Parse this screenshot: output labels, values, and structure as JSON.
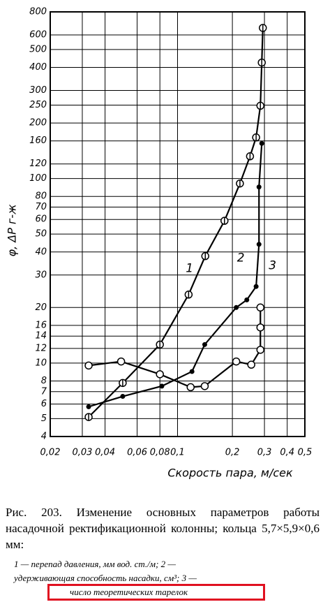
{
  "chart_data": {
    "type": "line",
    "ylabel": "φ, ΔP г-ж",
    "xlabel": "Скорость пара, м/сек",
    "xlog": true,
    "ylog": true,
    "grid": true,
    "xlim": [
      0.02,
      0.5
    ],
    "ylim": [
      4,
      800
    ],
    "xticks": [
      {
        "value": 0.02,
        "label": "0,02"
      },
      {
        "value": 0.03,
        "label": "0,03"
      },
      {
        "value": 0.04,
        "label": "0,04"
      },
      {
        "value": 0.06,
        "label": "0,06"
      },
      {
        "value": 0.08,
        "label": "0,08"
      },
      {
        "value": 0.1,
        "label": "0,1"
      },
      {
        "value": 0.2,
        "label": "0,2"
      },
      {
        "value": 0.3,
        "label": "0,3"
      },
      {
        "value": 0.4,
        "label": "0,4"
      },
      {
        "value": 0.5,
        "label": "0,5"
      }
    ],
    "yticks": [
      4,
      5,
      6,
      7,
      8,
      10,
      12,
      14,
      16,
      20,
      30,
      40,
      50,
      60,
      70,
      80,
      100,
      120,
      160,
      200,
      250,
      300,
      400,
      500,
      600,
      800
    ],
    "series": [
      {
        "label": "1",
        "color": "#000000",
        "marker": "circle-bar",
        "x": [
          0.0325,
          0.05,
          0.08,
          0.115,
          0.142,
          0.181,
          0.22,
          0.25,
          0.27,
          0.285,
          0.29,
          0.294
        ],
        "values": [
          5.1,
          7.8,
          12.6,
          23.5,
          38,
          59,
          94,
          132,
          167,
          248,
          425,
          655
        ]
      },
      {
        "label": "2",
        "color": "#000000",
        "marker": "dot",
        "x": [
          0.0325,
          0.05,
          0.082,
          0.12,
          0.141,
          0.21,
          0.24,
          0.27,
          0.28,
          0.28,
          0.29
        ],
        "values": [
          5.8,
          6.6,
          7.5,
          9,
          12.6,
          20,
          22,
          26,
          44,
          90,
          155
        ]
      },
      {
        "label": "3",
        "color": "#000000",
        "marker": "circle",
        "x": [
          0.0325,
          0.049,
          0.08,
          0.118,
          0.141,
          0.21,
          0.254,
          0.285,
          0.285,
          0.285
        ],
        "values": [
          9.7,
          10.2,
          8.7,
          7.4,
          7.5,
          10.2,
          9.8,
          11.8,
          15.6,
          20
        ]
      }
    ]
  },
  "caption": "Рис. 203. Изменение основных параметров работы насадочной ректификационной колонны; кольца 5,7×5,9×0,6 мм:",
  "notes": [
    "1 — перепад давления, мм вод. ст./м; 2 —",
    "удерживающая способность насадки, см³; 3 —",
    "число теоретических тарелок"
  ]
}
